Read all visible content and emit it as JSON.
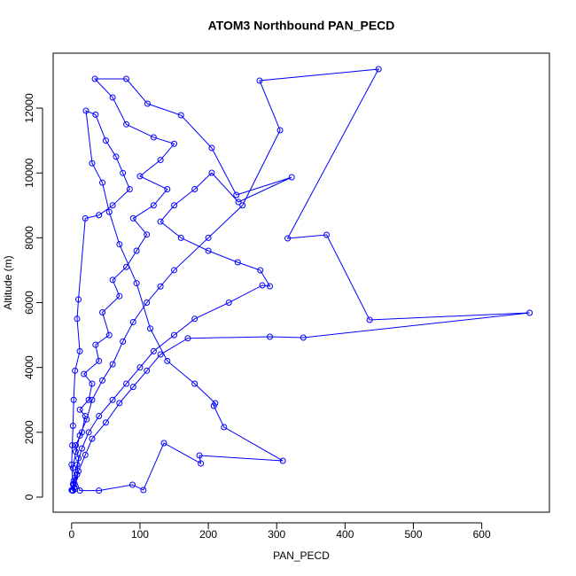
{
  "chart_data": {
    "type": "line",
    "title": "ATOM3 Northbound PAN_PECD",
    "x_label": "PAN_PECD",
    "y_label": "Altitude (m)",
    "x": [
      2,
      5,
      3,
      8,
      10,
      6,
      15,
      20,
      12,
      25,
      30,
      18,
      40,
      35,
      55,
      45,
      70,
      60,
      80,
      95,
      110,
      90,
      120,
      140,
      100,
      130,
      150,
      120,
      80,
      60,
      34,
      80,
      111,
      160,
      205,
      241,
      322,
      244,
      205,
      180,
      150,
      130,
      160,
      200,
      243,
      276,
      290,
      279,
      230,
      180,
      150,
      120,
      100,
      80,
      60,
      40,
      25,
      15,
      8,
      3,
      1,
      4,
      10,
      20,
      30,
      50,
      70,
      90,
      110,
      130,
      170,
      290,
      339,
      670,
      436,
      373,
      316,
      449,
      275,
      305,
      250,
      200,
      150,
      130,
      110,
      90,
      75,
      60,
      45,
      30,
      22,
      12,
      6,
      2,
      5,
      12,
      40,
      89,
      105,
      135,
      189,
      187,
      309,
      223,
      208,
      210,
      180,
      140,
      115,
      95,
      70,
      55,
      45,
      30,
      21,
      35,
      50,
      65,
      75,
      85,
      60,
      40,
      20,
      10,
      8,
      12,
      5,
      3,
      2,
      1,
      0,
      2,
      0
    ],
    "series": [
      {
        "color": "#0000ff",
        "marker": "circle",
        "values": [
          200,
          250,
          400,
          700,
          1200,
          1600,
          2000,
          2500,
          2700,
          3000,
          3500,
          3800,
          4200,
          4700,
          5000,
          5700,
          6200,
          6700,
          7100,
          7600,
          8100,
          8600,
          9000,
          9500,
          9900,
          10400,
          10900,
          11100,
          11500,
          12329,
          12903,
          12903,
          12137,
          11782,
          10771,
          9322,
          9869,
          9103,
          10005,
          9500,
          9000,
          8500,
          8000,
          7600,
          7244,
          6998,
          6506,
          6534,
          6000,
          5500,
          5000,
          4500,
          4000,
          3500,
          3000,
          2500,
          2000,
          1500,
          1000,
          500,
          200,
          300,
          800,
          1300,
          1800,
          2300,
          2900,
          3400,
          3900,
          4400,
          4900,
          4948,
          4921,
          5686,
          5467,
          8092,
          7982,
          13204,
          12849,
          11318,
          9000,
          8000,
          7000,
          6500,
          6000,
          5400,
          4800,
          4100,
          3600,
          3000,
          2400,
          1900,
          1400,
          900,
          600,
          200,
          200,
          383,
          219,
          1668,
          1039,
          1285,
          1121,
          2160,
          2816,
          2898,
          3500,
          4200,
          5200,
          6600,
          7800,
          8800,
          9700,
          10300,
          11919,
          11800,
          11000,
          10500,
          10000,
          9500,
          9000,
          8700,
          8600,
          6100,
          5500,
          4500,
          3900,
          3000,
          2200,
          1600,
          1000,
          400,
          220
        ]
      }
    ],
    "xlim": [
      -27,
      699
    ],
    "xticks": [
      0,
      100,
      200,
      300,
      400,
      500,
      600
    ],
    "ylim": [
      -465,
      13696
    ],
    "yticks": [
      0,
      2000,
      4000,
      6000,
      8000,
      10000,
      12000
    ],
    "grid": false
  }
}
